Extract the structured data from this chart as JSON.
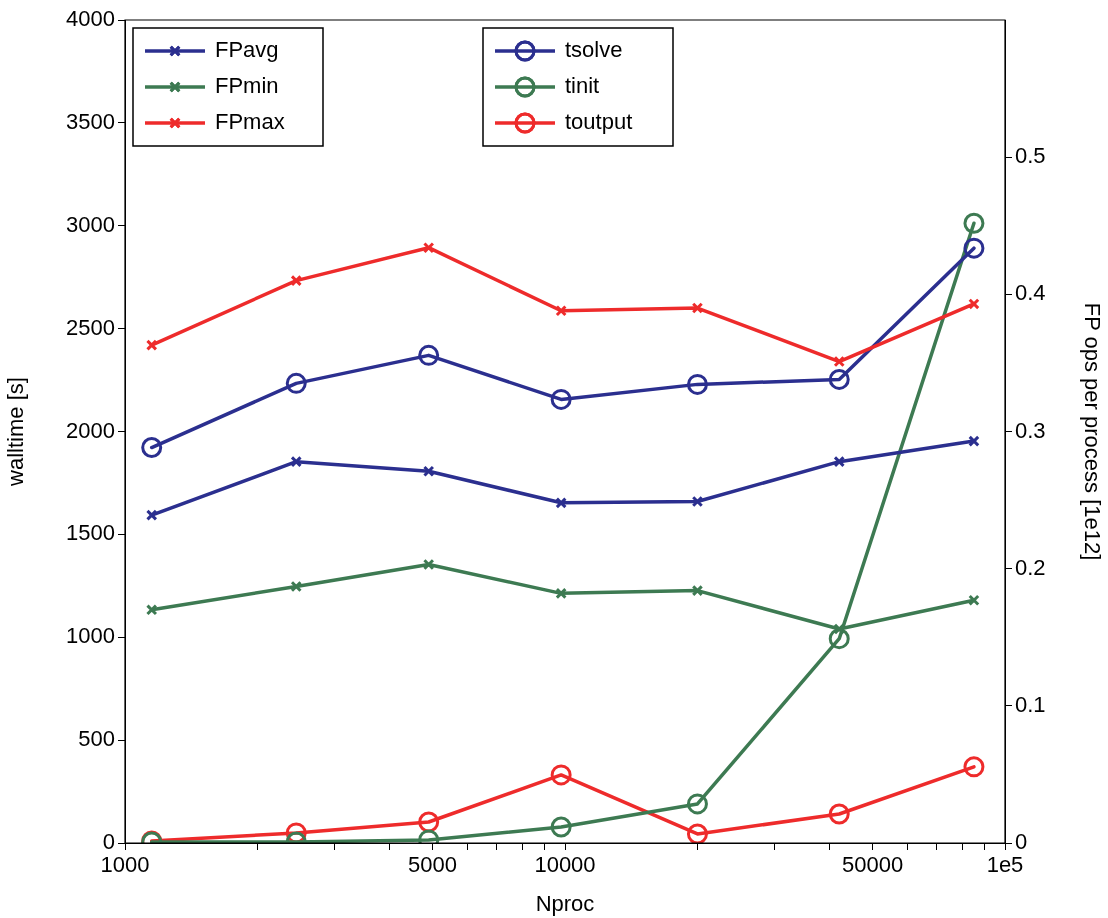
{
  "chart_data": {
    "type": "line",
    "xlabel": "Nproc",
    "ylabel": "walltime [s]",
    "y2label": "FP ops per process [1e12]",
    "x": [
      1150,
      2450,
      4900,
      9800,
      20000,
      42000,
      85000
    ],
    "log": "x",
    "grid": false,
    "legend": "top left",
    "line_style": "solid",
    "xlim": [
      1000,
      100000
    ],
    "xticks": [
      1000,
      {
        "value": 2000,
        "label": null
      },
      {
        "value": 3000,
        "label": null
      },
      {
        "value": 4000,
        "label": null
      },
      5000,
      {
        "value": 6000,
        "label": null
      },
      {
        "value": 7000,
        "label": null
      },
      {
        "value": 8000,
        "label": null
      },
      {
        "value": 9000,
        "label": null
      },
      10000,
      {
        "value": 20000,
        "label": null
      },
      {
        "value": 30000,
        "label": null
      },
      {
        "value": 40000,
        "label": null
      },
      50000,
      {
        "value": 60000,
        "label": null
      },
      {
        "value": 70000,
        "label": null
      },
      {
        "value": 80000,
        "label": null
      },
      {
        "value": 90000,
        "label": null
      },
      {
        "value": 100000,
        "label": "1e5"
      }
    ],
    "ylim": [
      0,
      4000
    ],
    "yticks": [
      0,
      500,
      1000,
      1500,
      2000,
      2500,
      3000,
      3500,
      4000
    ],
    "y2lim": [
      0,
      0.6
    ],
    "y2ticks": [
      0,
      0.1,
      0.2,
      0.3,
      0.4,
      0.5
    ],
    "series": [
      {
        "name": "FPavg",
        "color": "#2b2f8f",
        "marker": "cross",
        "axis": "y2",
        "values": [
          0.239,
          0.278,
          0.271,
          0.248,
          0.249,
          0.278,
          0.293
        ]
      },
      {
        "name": "FPmin",
        "color": "#3d7a52",
        "marker": "cross",
        "axis": "y2",
        "values": [
          0.17,
          0.187,
          0.203,
          0.182,
          0.184,
          0.156,
          0.177
        ]
      },
      {
        "name": "FPmax",
        "color": "#ee2b2b",
        "marker": "cross",
        "axis": "y2",
        "values": [
          0.363,
          0.41,
          0.434,
          0.388,
          0.39,
          0.351,
          0.393
        ]
      },
      {
        "name": "tsolve",
        "color": "#2b2f8f",
        "marker": "circle",
        "axis": "y",
        "values": [
          1922,
          2234,
          2370,
          2156,
          2229,
          2253,
          2891
        ]
      },
      {
        "name": "tinit",
        "color": "#3d7a52",
        "marker": "circle",
        "axis": "y",
        "values": [
          5,
          5,
          15,
          78,
          190,
          993,
          3012
        ]
      },
      {
        "name": "toutput",
        "color": "#ee2b2b",
        "marker": "circle",
        "axis": "y",
        "values": [
          10,
          49,
          102,
          331,
          44,
          141,
          370
        ]
      }
    ]
  }
}
